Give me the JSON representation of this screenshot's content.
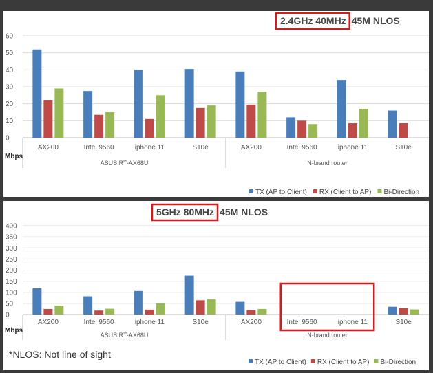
{
  "colors": {
    "tx": "#4a7ebb",
    "rx": "#be4b48",
    "bidi": "#98b954",
    "highlight": "#d01c1c"
  },
  "chart_data": [
    {
      "type": "bar",
      "title_highlight": "2.4GHz 40MHz",
      "title_rest": "45M NLOS",
      "ylabel": "Mbps",
      "ylim": [
        0,
        60
      ],
      "yticks": [
        "0",
        "10",
        "20",
        "30",
        "40",
        "50",
        "60"
      ],
      "categories": [
        "AX200",
        "Intel 9560",
        "iphone 11",
        "S10e",
        "AX200",
        "Intel 9560",
        "iphone 11",
        "S10e"
      ],
      "groups": [
        {
          "label": "ASUS RT-AX68U",
          "from": 0,
          "to": 3
        },
        {
          "label": "N-brand router",
          "from": 4,
          "to": 7
        }
      ],
      "series": [
        {
          "name": "TX (AP to Client)",
          "values": [
            52,
            27.5,
            40,
            40.5,
            39,
            12,
            34,
            16
          ]
        },
        {
          "name": "RX (Client to AP)",
          "values": [
            22,
            13.5,
            11,
            17.5,
            19.5,
            10,
            8.5,
            8.5
          ]
        },
        {
          "name": "Bi-Direction",
          "values": [
            29,
            15,
            25,
            19,
            27,
            8,
            17,
            null
          ]
        }
      ]
    },
    {
      "type": "bar",
      "title_highlight": "5GHz 80MHz",
      "title_rest": "45M NLOS",
      "ylabel": "Mbps",
      "ylim": [
        0,
        400
      ],
      "yticks": [
        "0",
        "50",
        "100",
        "150",
        "200",
        "250",
        "300",
        "350",
        "400"
      ],
      "categories": [
        "AX200",
        "Intel 9560",
        "iphone 11",
        "S10e",
        "AX200",
        "Intel 9560",
        "iphone 11",
        "S10e"
      ],
      "groups": [
        {
          "label": "ASUS RT-AX68U",
          "from": 0,
          "to": 3
        },
        {
          "label": "N-brand router",
          "from": 4,
          "to": 7
        }
      ],
      "highlight_categories": [
        5,
        6
      ],
      "series": [
        {
          "name": "TX (AP to Client)",
          "values": [
            118,
            82,
            106,
            175,
            57,
            null,
            null,
            35
          ]
        },
        {
          "name": "RX (Client to AP)",
          "values": [
            25,
            18,
            22,
            64,
            20,
            null,
            null,
            28
          ]
        },
        {
          "name": "Bi-Direction",
          "values": [
            40,
            26,
            50,
            68,
            25,
            null,
            null,
            23
          ]
        }
      ]
    }
  ],
  "footnote": "*NLOS: Not line of sight"
}
